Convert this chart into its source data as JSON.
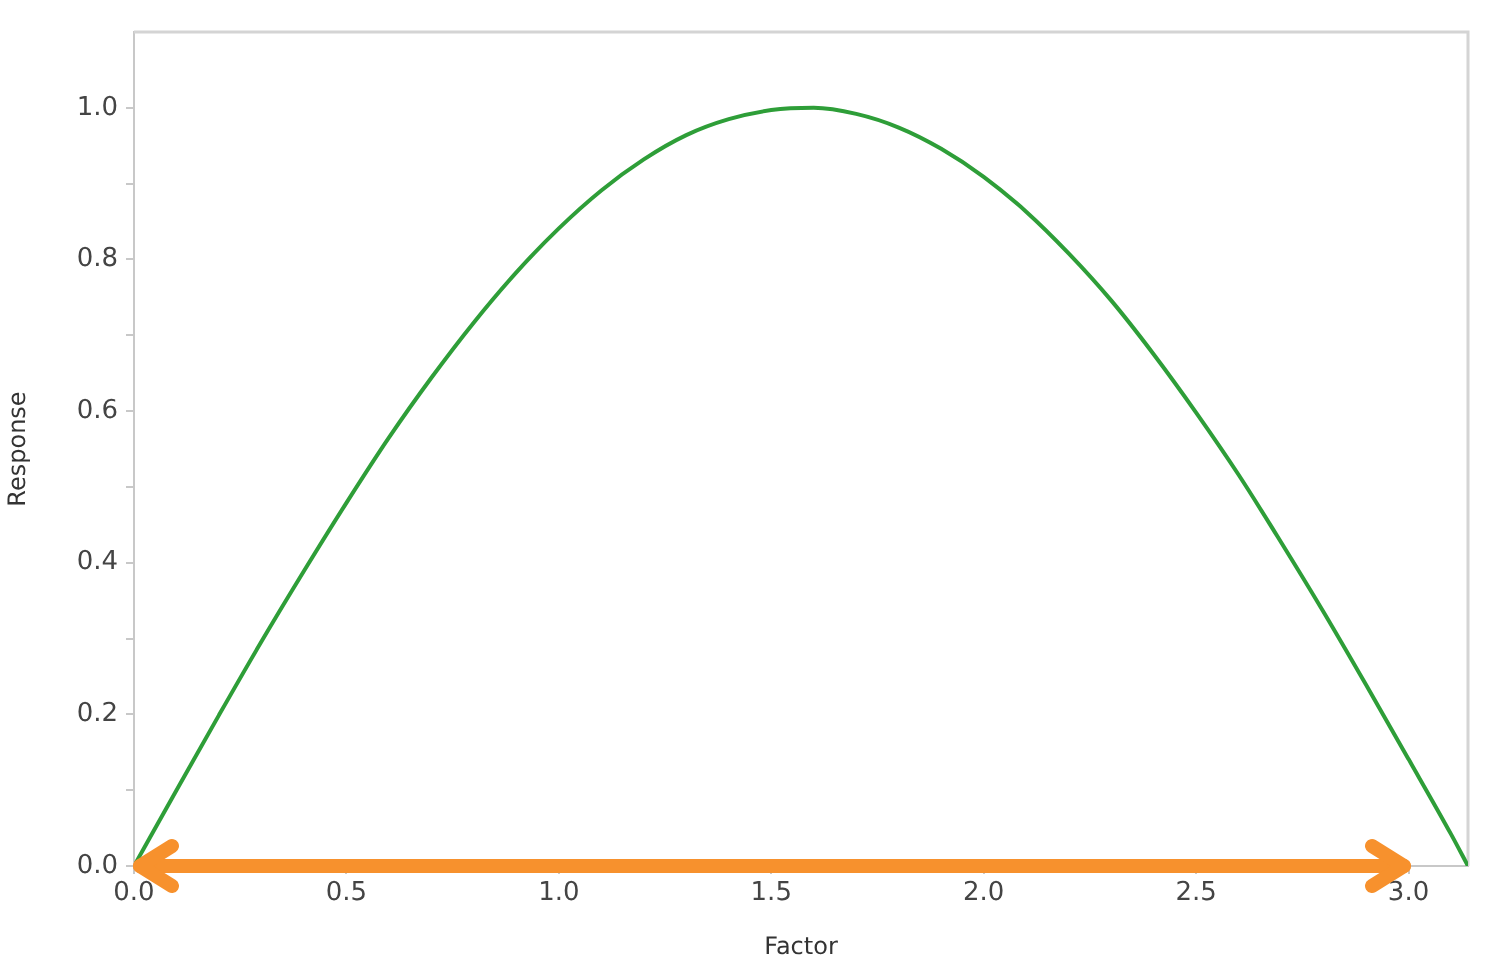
{
  "chart_data": {
    "type": "line",
    "xlabel": "Factor",
    "ylabel": "Response",
    "x": [
      0,
      0.1,
      0.2,
      0.3,
      0.4,
      0.5,
      0.6,
      0.7,
      0.8,
      0.9,
      1.0,
      1.1,
      1.2,
      1.3,
      1.4,
      1.5,
      1.6,
      1.7,
      1.8,
      1.9,
      2.0,
      2.1,
      2.2,
      2.3,
      2.4,
      2.5,
      2.6,
      2.7,
      2.8,
      2.9,
      3.0,
      3.1,
      3.14
    ],
    "series": [
      {
        "color": "#2e9e38",
        "values": [
          0,
          0.1,
          0.199,
          0.296,
          0.389,
          0.479,
          0.565,
          0.644,
          0.717,
          0.783,
          0.841,
          0.891,
          0.932,
          0.964,
          0.985,
          0.997,
          1.0,
          0.992,
          0.974,
          0.946,
          0.909,
          0.863,
          0.808,
          0.746,
          0.675,
          0.598,
          0.516,
          0.427,
          0.335,
          0.239,
          0.141,
          0.042,
          0
        ]
      }
    ],
    "xlim": [
      0,
      3.14
    ],
    "xticks": [
      {
        "value": 0,
        "label": "0.0"
      },
      0.5,
      {
        "value": 1,
        "label": "1.0"
      },
      1.5,
      {
        "value": 2,
        "label": "2.0"
      },
      2.5,
      {
        "value": 3,
        "label": "3.0"
      }
    ],
    "ylim": [
      0,
      1.1
    ],
    "yticks": [
      {
        "value": 0,
        "label": "0.0"
      },
      {
        "value": 0.1,
        "label": null
      },
      0.2,
      {
        "value": 0.3,
        "label": null
      },
      0.4,
      {
        "value": 0.5,
        "label": null
      },
      0.6,
      {
        "value": 0.7,
        "label": null
      },
      0.8,
      {
        "value": 0.9,
        "label": null
      },
      {
        "value": 1,
        "label": "1.0"
      }
    ],
    "grid": false,
    "legend": false,
    "marker": "none"
  }
}
